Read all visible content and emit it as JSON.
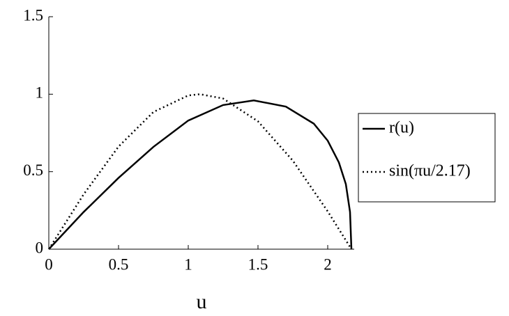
{
  "chart_data": {
    "type": "line",
    "x_label": "u",
    "xlim": [
      0,
      2.17
    ],
    "ylim": [
      0,
      1.5
    ],
    "xticks": [
      0,
      0.5,
      1,
      1.5,
      2
    ],
    "yticks": [
      0,
      0.5,
      1,
      1.5
    ],
    "series": [
      {
        "name": "r(u)",
        "color": "#000000",
        "style": "solid",
        "x": [
          0,
          0.25,
          0.5,
          0.75,
          1.0,
          1.25,
          1.47,
          1.7,
          1.9,
          2.0,
          2.08,
          2.13,
          2.16,
          2.17
        ],
        "values": [
          0,
          0.24,
          0.46,
          0.66,
          0.83,
          0.93,
          0.96,
          0.92,
          0.81,
          0.7,
          0.56,
          0.42,
          0.24,
          0
        ]
      },
      {
        "name": "sin(πu/2.17)",
        "color": "#000000",
        "style": "dotted",
        "x": [
          0,
          0.25,
          0.5,
          0.75,
          1.0,
          1.085,
          1.25,
          1.5,
          1.75,
          2.0,
          2.17
        ],
        "values": [
          0,
          0.354,
          0.662,
          0.885,
          0.992,
          1.0,
          0.972,
          0.825,
          0.571,
          0.244,
          0
        ]
      }
    ],
    "legend": "right"
  }
}
